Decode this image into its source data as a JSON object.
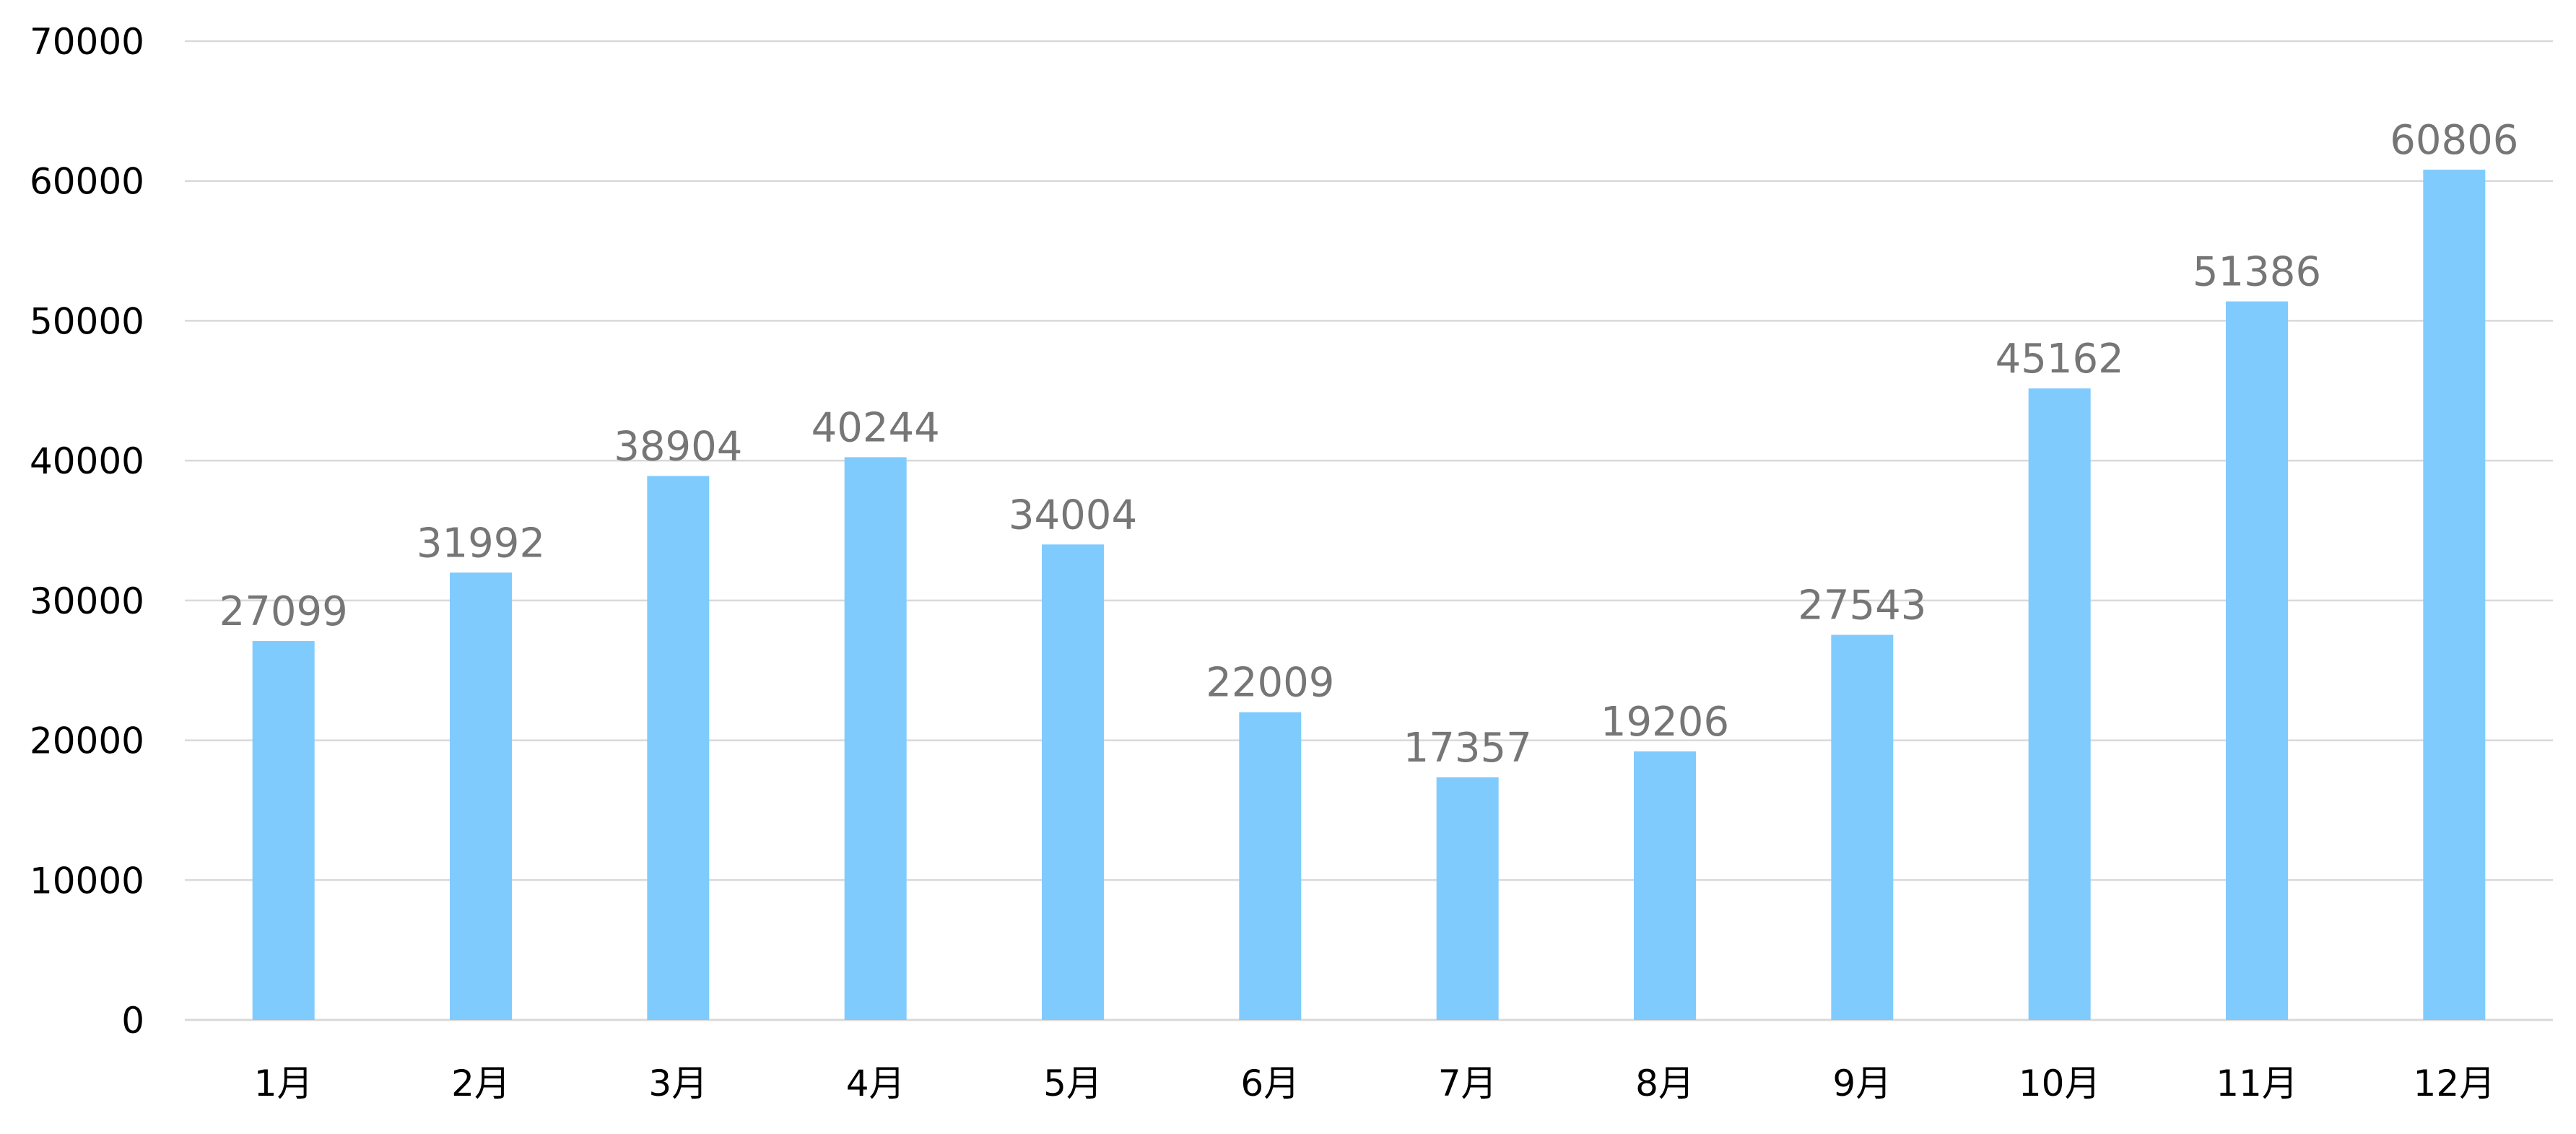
{
  "chart_data": {
    "type": "bar",
    "title": "",
    "xlabel": "",
    "ylabel": "",
    "categories": [
      "1月",
      "2月",
      "3月",
      "4月",
      "5月",
      "6月",
      "7月",
      "8月",
      "9月",
      "10月",
      "11月",
      "12月"
    ],
    "values": [
      27099,
      31992,
      38904,
      40244,
      34004,
      22009,
      17357,
      19206,
      27543,
      45162,
      51386,
      60806
    ],
    "ylim": [
      0,
      70000
    ],
    "yticks": [
      0,
      10000,
      20000,
      30000,
      40000,
      50000,
      60000,
      70000
    ],
    "grid": true,
    "legend": "none",
    "data_labels": true,
    "colors": {
      "bar": "#7fcbfe",
      "data_label": "#767676",
      "gridline": "#d9d9d9",
      "tick_label": "#000000"
    }
  }
}
